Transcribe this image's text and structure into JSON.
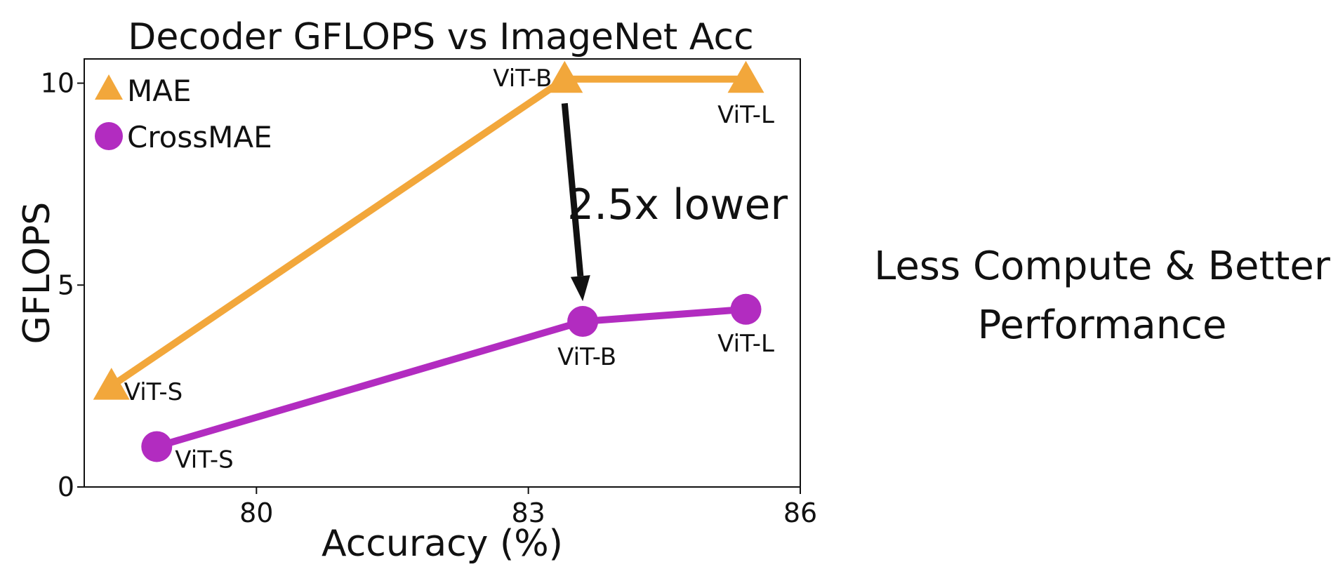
{
  "chart_data": {
    "type": "line",
    "title": "Decoder GFLOPS vs ImageNet Acc",
    "xlabel": "Accuracy (%)",
    "ylabel": "GFLOPS",
    "xlim": [
      78.1,
      86
    ],
    "ylim": [
      0,
      10.6
    ],
    "xticks": [
      80,
      83,
      86
    ],
    "yticks": [
      0,
      5,
      10
    ],
    "grid": false,
    "legend_position": "top-left",
    "series": [
      {
        "name": "MAE",
        "marker": "triangle",
        "color": "#f2a73b",
        "x": [
          78.4,
          83.4,
          85.4
        ],
        "y": [
          2.5,
          10.1,
          10.1
        ],
        "labels": [
          "ViT-S",
          "ViT-B",
          "ViT-L"
        ]
      },
      {
        "name": "CrossMAE",
        "marker": "circle",
        "color": "#b22cc0",
        "x": [
          78.9,
          83.6,
          85.4
        ],
        "y": [
          1.0,
          4.1,
          4.4
        ],
        "labels": [
          "ViT-S",
          "ViT-B",
          "ViT-L"
        ]
      }
    ],
    "annotation": {
      "text": "2.5x lower",
      "arrow_from": [
        83.4,
        9.5
      ],
      "arrow_to": [
        83.6,
        4.6
      ]
    }
  },
  "side_text": {
    "line1": "Less Compute & Better",
    "line2": "Performance"
  }
}
